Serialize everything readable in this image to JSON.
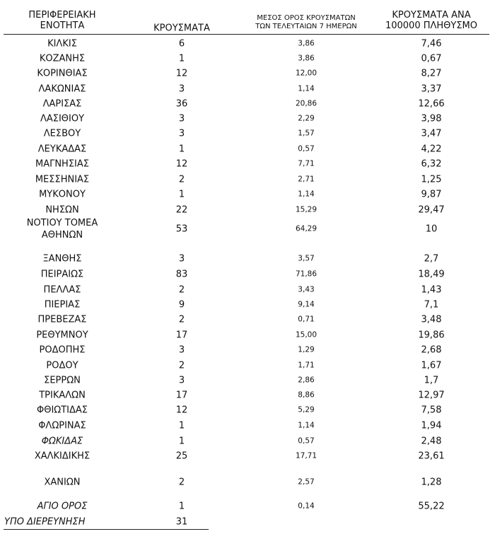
{
  "table": {
    "headers": [
      "ΠΕΡΙΦΕΡΕΙΑΚΗ\nΕΝΟΤΗΤΑ",
      "ΚΡΟΥΣΜΑΤΑ",
      "ΜΕΣΟΣ ΟΡΟΣ ΚΡΟΥΣΜΑΤΩΝ\nΤΩΝ ΤΕΛΕΥΤΑΙΩΝ 7 ΗΜΕΡΩΝ",
      "ΚΡΟΥΣΜΑΤΑ ΑΝΑ\n100000 ΠΛΗΘΥΣΜΟ"
    ],
    "rows": [
      [
        "ΚΙΛΚΙΣ",
        "6",
        "3,86",
        "7,46"
      ],
      [
        "ΚΟΖΑΝΗΣ",
        "1",
        "3,86",
        "0,67"
      ],
      [
        "ΚΟΡΙΝΘΙΑΣ",
        "12",
        "12,00",
        "8,27"
      ],
      [
        "ΛΑΚΩΝΙΑΣ",
        "3",
        "1,14",
        "3,37"
      ],
      [
        "ΛΑΡΙΣΑΣ",
        "36",
        "20,86",
        "12,66"
      ],
      [
        "ΛΑΣΙΘΙΟΥ",
        "3",
        "2,29",
        "3,98"
      ],
      [
        "ΛΕΣΒΟΥ",
        "3",
        "1,57",
        "3,47"
      ],
      [
        "ΛΕΥΚΑΔΑΣ",
        "1",
        "0,57",
        "4,22"
      ],
      [
        "ΜΑΓΝΗΣΙΑΣ",
        "12",
        "7,71",
        "6,32"
      ],
      [
        "ΜΕΣΣΗΝΙΑΣ",
        "2",
        "2,71",
        "1,25"
      ],
      [
        "ΜΥΚΟΝΟΥ",
        "1",
        "1,14",
        "9,87"
      ],
      [
        "ΝΗΣΩΝ",
        "22",
        "15,29",
        "29,47"
      ],
      [
        "ΝΟΤΙΟΥ ΤΟΜΕΑ\nΑΘΗΝΩΝ",
        "53",
        "64,29",
        "10"
      ],
      [
        "ΞΑΝΘΗΣ",
        "3",
        "3,57",
        "2,7"
      ],
      [
        "ΠΕΙΡΑΙΩΣ",
        "83",
        "71,86",
        "18,49"
      ],
      [
        "ΠΕΛΛΑΣ",
        "2",
        "3,43",
        "1,43"
      ],
      [
        "ΠΙΕΡΙΑΣ",
        "9",
        "9,14",
        "7,1"
      ],
      [
        "ΠΡΕΒΕΖΑΣ",
        "2",
        "0,71",
        "3,48"
      ],
      [
        "ΡΕΘΥΜΝΟΥ",
        "17",
        "15,00",
        "19,86"
      ],
      [
        "ΡΟΔΟΠΗΣ",
        "3",
        "1,29",
        "2,68"
      ],
      [
        "ΡΟΔΟΥ",
        "2",
        "1,71",
        "1,67"
      ],
      [
        "ΣΕΡΡΩΝ",
        "3",
        "2,86",
        "1,7"
      ],
      [
        "ΤΡΙΚΑΛΩΝ",
        "17",
        "8,86",
        "12,97"
      ],
      [
        "ΦΘΙΩΤΙΔΑΣ",
        "12",
        "5,29",
        "7,58"
      ],
      [
        "ΦΛΩΡΙΝΑΣ",
        "1",
        "1,14",
        "1,94"
      ],
      [
        "ΦΩΚΙΔΑΣ",
        "1",
        "0,57",
        "2,48"
      ],
      [
        "ΧΑΛΚΙΔΙΚΗΣ",
        "25",
        "17,71",
        "23,61"
      ],
      [
        "ΧΑΝΙΩΝ",
        "2",
        "2,57",
        "1,28"
      ],
      [
        "ΑΓΙΟ ΟΡΟΣ",
        "1",
        "0,14",
        "55,22"
      ],
      [
        "ΥΠΟ ΔΙΕΡΕΥΝΗΣΗ",
        "31"
      ]
    ]
  }
}
